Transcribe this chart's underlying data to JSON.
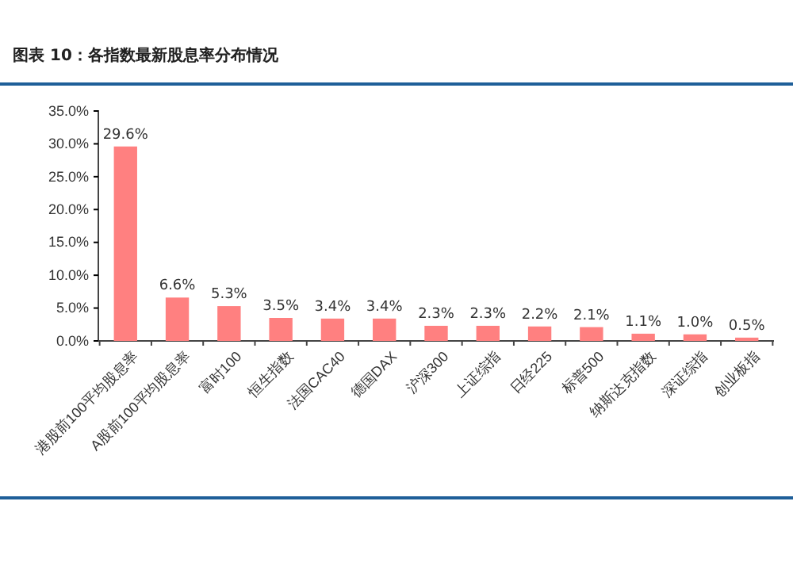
{
  "chart_data": {
    "type": "bar",
    "title": "图表 10：各指数最新股息率分布情况",
    "categories": [
      "港股前100平均股息率",
      "A股前100平均股息率",
      "富时100",
      "恒生指数",
      "法国CAC40",
      "德国DAX",
      "沪深300",
      "上证综指",
      "日经225",
      "标普500",
      "纳斯达克指数",
      "深证综指",
      "创业板指"
    ],
    "values": [
      29.6,
      6.6,
      5.3,
      3.5,
      3.4,
      3.4,
      2.3,
      2.3,
      2.2,
      2.1,
      1.1,
      1.0,
      0.5
    ],
    "color": "#ff8080",
    "ylim": [
      0,
      35
    ],
    "yticks": [
      {
        "value": 0,
        "label": "0.0%"
      },
      {
        "value": 5,
        "label": "5.0%"
      },
      {
        "value": 10,
        "label": "10.0%"
      },
      {
        "value": 15,
        "label": "15.0%"
      },
      {
        "value": 20,
        "label": "20.0%"
      },
      {
        "value": 25,
        "label": "25.0%"
      },
      {
        "value": 30,
        "label": "30.0%"
      },
      {
        "value": 35,
        "label": "35.0%"
      }
    ],
    "value_labels": [
      "29.6%",
      "6.6%",
      "5.3%",
      "3.5%",
      "3.4%",
      "3.4%",
      "2.3%",
      "2.3%",
      "2.2%",
      "2.1%",
      "1.1%",
      "1.0%",
      "0.5%"
    ],
    "grid": false
  }
}
